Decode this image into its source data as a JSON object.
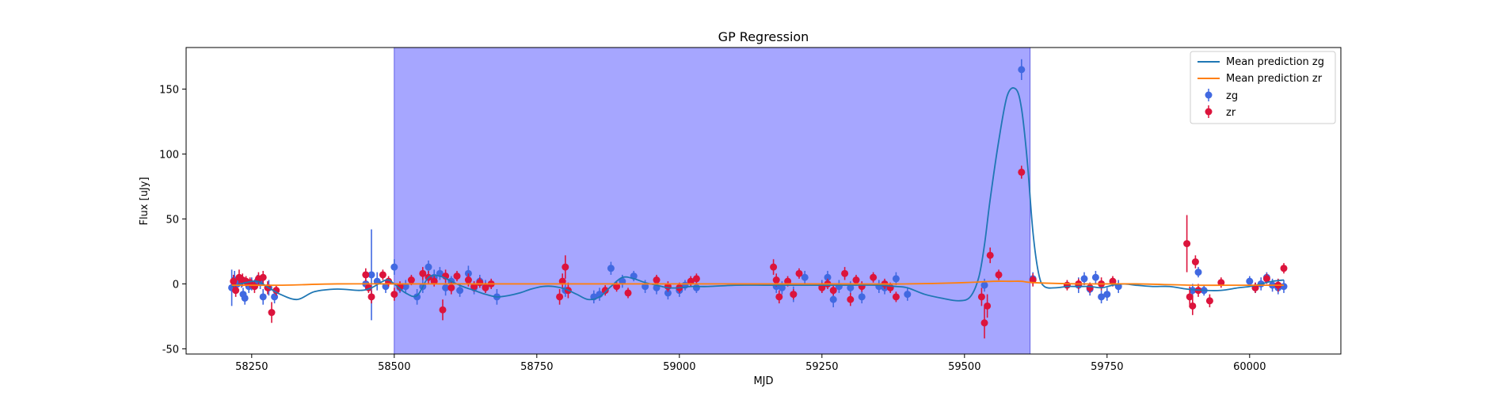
{
  "chart_data": {
    "type": "scatter",
    "title": "GP Regression",
    "xlabel": "MJD",
    "ylabel": "Flux [uJy]",
    "xlim": [
      58135,
      60160
    ],
    "ylim": [
      -54,
      182
    ],
    "xticks": [
      58250,
      58500,
      58750,
      59000,
      59250,
      59500,
      59750,
      60000
    ],
    "yticks": [
      -50,
      0,
      50,
      100,
      150
    ],
    "grid": false,
    "legend_position": "top-right",
    "shaded_region": {
      "x_start": 58500,
      "x_end": 59615,
      "color": "#a6a6ff"
    },
    "colors": {
      "zg_line": "#1f77b4",
      "zr_line": "#ff7f0e",
      "zg_points": "#4169e1",
      "zr_points": "#dc143c"
    },
    "lines": [
      {
        "name": "Mean prediction zg",
        "x": [
          58215,
          58240,
          58260,
          58280,
          58300,
          58330,
          58360,
          58400,
          58440,
          58460,
          58480,
          58490,
          58500,
          58520,
          58540,
          58560,
          58580,
          58600,
          58620,
          58640,
          58660,
          58680,
          58700,
          58720,
          58740,
          58760,
          58780,
          58800,
          58820,
          58840,
          58860,
          58880,
          58900,
          58920,
          58940,
          58960,
          58980,
          59000,
          59020,
          59050,
          59100,
          59150,
          59200,
          59250,
          59300,
          59350,
          59380,
          59400,
          59430,
          59460,
          59490,
          59510,
          59525,
          59535,
          59545,
          59560,
          59575,
          59590,
          59600,
          59610,
          59620,
          59630,
          59640,
          59660,
          59680,
          59700,
          59720,
          59740,
          59760,
          59780,
          59800,
          59830,
          59860,
          59890,
          59920,
          59950,
          59980,
          60000,
          60020,
          60040,
          60060
        ],
        "y": [
          -2,
          1,
          2,
          -3,
          -8,
          -12,
          -6,
          -4,
          -5,
          -3,
          2,
          3,
          0,
          -7,
          -9,
          5,
          6,
          2,
          -2,
          -5,
          -8,
          -10,
          -9,
          -7,
          -4,
          -2,
          -2,
          -4,
          -8,
          -12,
          -10,
          -2,
          5,
          4,
          1,
          -1,
          -3,
          -3,
          -2,
          -2,
          -1,
          -1,
          -1,
          -1,
          -1,
          -1,
          -2,
          -3,
          -8,
          -11,
          -13,
          -10,
          5,
          30,
          65,
          110,
          145,
          150,
          135,
          95,
          40,
          8,
          -2,
          -3,
          -2,
          -2,
          -2,
          -3,
          -1,
          0,
          -1,
          -2,
          -2,
          -4,
          -5,
          -5,
          -3,
          -2,
          0,
          2,
          3
        ]
      },
      {
        "name": "Mean prediction zr",
        "x": [
          58215,
          58300,
          58400,
          58500,
          58600,
          58700,
          58800,
          58900,
          59000,
          59100,
          59200,
          59300,
          59400,
          59500,
          59550,
          59580,
          59600,
          59620,
          59700,
          59800,
          59900,
          60000,
          60060
        ],
        "y": [
          -1,
          -1,
          0,
          0,
          0,
          0,
          0,
          0,
          0,
          0,
          0,
          0,
          0,
          1,
          2,
          2,
          2,
          1,
          0,
          0,
          -1,
          -1,
          -1
        ]
      }
    ],
    "series": [
      {
        "name": "zg",
        "x": [
          58215,
          58220,
          58225,
          58232,
          58235,
          58238,
          58245,
          58250,
          58260,
          58265,
          58270,
          58280,
          58290,
          58450,
          58460,
          58470,
          58485,
          58500,
          58510,
          58520,
          58540,
          58550,
          58560,
          58570,
          58580,
          58590,
          58600,
          58615,
          58630,
          58640,
          58650,
          58660,
          58680,
          58800,
          58850,
          58860,
          58880,
          58900,
          58920,
          58940,
          58960,
          58980,
          59000,
          59010,
          59030,
          59170,
          59180,
          59200,
          59220,
          59250,
          59260,
          59270,
          59280,
          59300,
          59320,
          59350,
          59360,
          59380,
          59400,
          59535,
          59600,
          59620,
          59700,
          59710,
          59720,
          59730,
          59740,
          59750,
          59770,
          59900,
          59910,
          59920,
          60000,
          60010,
          60020,
          60030,
          60040,
          60050,
          60060
        ],
        "y": [
          -3,
          3,
          0,
          2,
          -8,
          -11,
          -2,
          0,
          2,
          1,
          -10,
          -3,
          -10,
          0,
          7,
          2,
          -2,
          13,
          -3,
          -2,
          -10,
          -2,
          13,
          5,
          8,
          -3,
          2,
          -5,
          8,
          -3,
          2,
          -2,
          -10,
          -5,
          -10,
          -8,
          12,
          2,
          6,
          -2,
          -3,
          -7,
          -5,
          -1,
          -3,
          -2,
          -3,
          -8,
          5,
          -2,
          5,
          -12,
          -2,
          -3,
          -10,
          -2,
          -3,
          4,
          -8,
          -1,
          165,
          4,
          -1,
          4,
          -4,
          5,
          -10,
          -8,
          -2,
          -5,
          9,
          -5,
          2,
          -3,
          0,
          5,
          -1,
          -3,
          -2
        ],
        "err": [
          14,
          7,
          5,
          5,
          5,
          5,
          5,
          5,
          5,
          5,
          6,
          6,
          5,
          4,
          35,
          7,
          5,
          6,
          4,
          5,
          6,
          5,
          5,
          6,
          5,
          6,
          4,
          5,
          6,
          5,
          5,
          5,
          6,
          5,
          5,
          5,
          5,
          5,
          4,
          5,
          5,
          5,
          5,
          4,
          4,
          5,
          5,
          6,
          5,
          5,
          5,
          6,
          5,
          5,
          5,
          5,
          5,
          5,
          5,
          5,
          8,
          5,
          6,
          5,
          5,
          5,
          5,
          5,
          5,
          5,
          4,
          4,
          4,
          4,
          5,
          4,
          5,
          5,
          5
        ]
      },
      {
        "name": "zr",
        "x": [
          58218,
          58222,
          58228,
          58234,
          58240,
          58247,
          58255,
          58262,
          58270,
          58278,
          58285,
          58293,
          58450,
          58455,
          58460,
          58480,
          58490,
          58500,
          58510,
          58530,
          58550,
          58560,
          58570,
          58585,
          58590,
          58600,
          58610,
          58630,
          58640,
          58650,
          58660,
          58670,
          58790,
          58795,
          58800,
          58805,
          58870,
          58890,
          58910,
          58960,
          58980,
          59000,
          59020,
          59030,
          59165,
          59170,
          59175,
          59190,
          59200,
          59210,
          59250,
          59260,
          59270,
          59290,
          59300,
          59310,
          59320,
          59340,
          59360,
          59370,
          59380,
          59530,
          59535,
          59540,
          59545,
          59560,
          59600,
          59620,
          59680,
          59700,
          59720,
          59740,
          59760,
          59890,
          59895,
          59900,
          59905,
          59910,
          59930,
          59950,
          60010,
          60030,
          60050,
          60060
        ],
        "y": [
          2,
          -5,
          5,
          3,
          2,
          1,
          -2,
          4,
          5,
          -3,
          -22,
          -5,
          7,
          -3,
          -10,
          7,
          2,
          -8,
          -2,
          3,
          8,
          5,
          2,
          -20,
          6,
          -3,
          6,
          3,
          -2,
          1,
          -3,
          0,
          -10,
          2,
          13,
          -5,
          -5,
          -2,
          -7,
          3,
          -2,
          -3,
          2,
          4,
          13,
          3,
          -10,
          2,
          -8,
          8,
          -3,
          0,
          -5,
          8,
          -12,
          3,
          -2,
          5,
          0,
          -3,
          -10,
          -10,
          -30,
          -17,
          22,
          7,
          86,
          3,
          -1,
          0,
          -3,
          0,
          2,
          31,
          -10,
          -17,
          17,
          -5,
          -13,
          1,
          -3,
          4,
          -1,
          12
        ],
        "err": [
          5,
          5,
          6,
          5,
          4,
          4,
          5,
          5,
          5,
          5,
          8,
          4,
          5,
          4,
          5,
          4,
          4,
          5,
          4,
          4,
          5,
          5,
          4,
          8,
          5,
          5,
          4,
          5,
          4,
          4,
          4,
          4,
          6,
          6,
          9,
          6,
          4,
          4,
          4,
          4,
          4,
          4,
          4,
          4,
          6,
          5,
          5,
          4,
          4,
          4,
          4,
          4,
          4,
          5,
          5,
          4,
          4,
          4,
          4,
          4,
          4,
          7,
          12,
          9,
          6,
          4,
          5,
          5,
          4,
          4,
          4,
          5,
          4,
          22,
          8,
          7,
          5,
          5,
          5,
          4,
          4,
          4,
          5,
          4
        ]
      }
    ]
  }
}
